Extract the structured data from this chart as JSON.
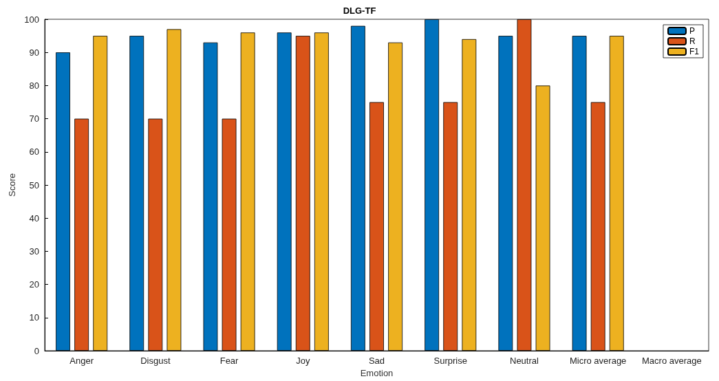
{
  "chart_data": {
    "type": "bar",
    "title": "DLG-TF",
    "xlabel": "Emotion",
    "ylabel": "Score",
    "categories": [
      "Anger",
      "Disgust",
      "Fear",
      "Joy",
      "Sad",
      "Surprise",
      "Neutral",
      "Micro average",
      "Macro average"
    ],
    "series": [
      {
        "name": "P",
        "color": "#0072bd",
        "values": [
          90,
          95,
          93,
          96,
          98,
          100,
          95,
          95,
          null
        ]
      },
      {
        "name": "R",
        "color": "#d95319",
        "values": [
          70,
          70,
          70,
          95,
          75,
          75,
          100,
          75,
          null
        ]
      },
      {
        "name": "F1",
        "color": "#edb120",
        "values": [
          95,
          97,
          96,
          96,
          93,
          94,
          80,
          95,
          null
        ]
      }
    ],
    "ylim": [
      0,
      100
    ],
    "yticks": [
      0,
      10,
      20,
      30,
      40,
      50,
      60,
      70,
      80,
      90,
      100
    ],
    "grid": false,
    "legend": "top right"
  }
}
